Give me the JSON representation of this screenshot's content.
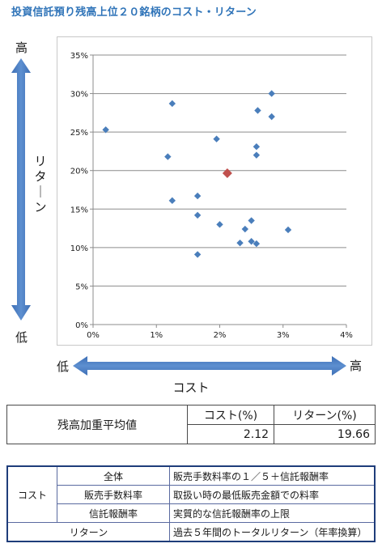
{
  "title": "投資信託預り残高上位２０銘柄のコスト・リターン",
  "axis_words": {
    "y_high": "高",
    "y_low": "低",
    "y_title": "リターン",
    "x_low": "低",
    "x_high": "高",
    "x_title": "コスト"
  },
  "chart_data": {
    "type": "scatter",
    "x_ticks": [
      "0%",
      "1%",
      "2%",
      "3%",
      "4%"
    ],
    "y_ticks": [
      "0%",
      "5%",
      "10%",
      "15%",
      "20%",
      "25%",
      "30%",
      "35%"
    ],
    "xlim": [
      0,
      4
    ],
    "ylim": [
      0,
      35
    ],
    "grid": "horizontal",
    "series": [
      {
        "color": "#4a7ebb",
        "marker": "diamond",
        "points": [
          [
            0.2,
            25.3
          ],
          [
            1.25,
            28.7
          ],
          [
            1.18,
            21.8
          ],
          [
            1.25,
            16.1
          ],
          [
            1.65,
            16.7
          ],
          [
            1.65,
            14.2
          ],
          [
            1.65,
            9.1
          ],
          [
            1.95,
            24.1
          ],
          [
            2.0,
            13.0
          ],
          [
            2.32,
            10.6
          ],
          [
            2.4,
            12.4
          ],
          [
            2.5,
            13.5
          ],
          [
            2.5,
            10.8
          ],
          [
            2.58,
            10.5
          ],
          [
            2.58,
            23.1
          ],
          [
            2.58,
            22.0
          ],
          [
            2.6,
            27.8
          ],
          [
            2.82,
            30.0
          ],
          [
            2.82,
            27.0
          ],
          [
            3.08,
            12.3
          ]
        ]
      },
      {
        "color": "#c0504d",
        "marker": "diamond",
        "points": [
          [
            2.12,
            19.66
          ]
        ]
      }
    ]
  },
  "summary": {
    "row_label": "残高加重平均値",
    "cost_header": "コスト(%)",
    "return_header": "リターン(%)",
    "cost_value": "2.12",
    "return_value": "19.66"
  },
  "legend": {
    "cost_group": "コスト",
    "rows": [
      {
        "name": "全体",
        "desc": "販売手数料率の１／５＋信託報酬率"
      },
      {
        "name": "販売手数料率",
        "desc": "取扱い時の最低販売金額での料率"
      },
      {
        "name": "信託報酬率",
        "desc": "実質的な信託報酬率の上限"
      }
    ],
    "return_name": "リターン",
    "return_desc": "過去５年間のトータルリターン（年率換算）"
  }
}
